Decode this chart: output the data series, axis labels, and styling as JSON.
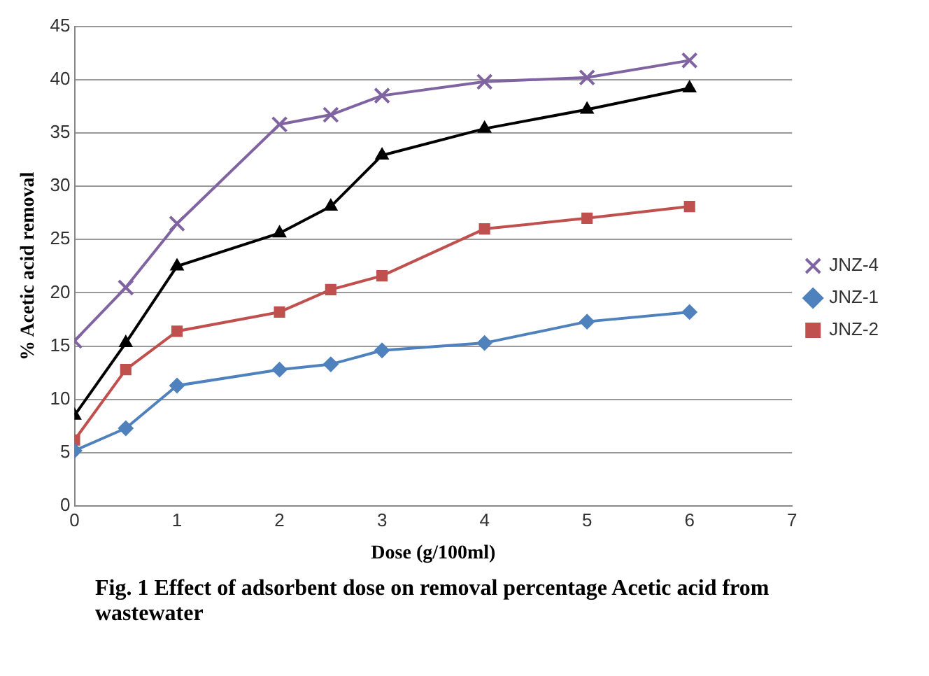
{
  "chart_data": {
    "type": "line",
    "xlabel": "Dose (g/100ml)",
    "ylabel": "% Acetic acid removal",
    "annotations": [
      "Fig. 1 Effect of adsorbent dose on removal percentage Acetic acid  from wastewater"
    ],
    "x": [
      0,
      0.5,
      1,
      2,
      2.5,
      3,
      4,
      5,
      6
    ],
    "xlim": [
      0,
      7
    ],
    "xticks": [
      0,
      1,
      2,
      3,
      4,
      5,
      6,
      7
    ],
    "ylim": [
      0,
      45
    ],
    "yticks": [
      0,
      5,
      10,
      15,
      20,
      25,
      30,
      35,
      40,
      45
    ],
    "grid": "y",
    "legend": "right",
    "series": [
      {
        "name": "JNZ-4",
        "color": "#8064a2",
        "marker": "cross",
        "values": [
          15.5,
          20.5,
          26.5,
          35.8,
          36.7,
          38.5,
          39.8,
          40.2,
          41.8
        ]
      },
      {
        "color": "#000000",
        "marker": "triangle",
        "values": [
          8.5,
          15.3,
          22.5,
          25.6,
          28.1,
          32.9,
          35.4,
          37.2,
          39.2
        ]
      },
      {
        "name": "JNZ-1",
        "color": "#4f81bd",
        "marker": "diamond",
        "values": [
          5.2,
          7.3,
          11.3,
          12.8,
          13.3,
          14.6,
          15.3,
          17.3,
          18.2
        ]
      },
      {
        "name": "JNZ-2",
        "color": "#c0504d",
        "marker": "square",
        "values": [
          6.2,
          12.8,
          16.4,
          18.2,
          20.3,
          21.6,
          26,
          27,
          28.1
        ]
      }
    ]
  }
}
